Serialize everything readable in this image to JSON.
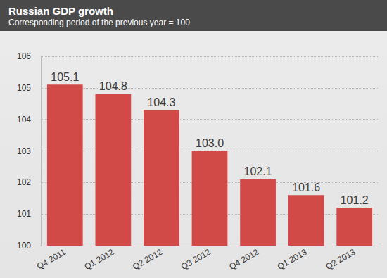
{
  "chart_data": {
    "type": "bar",
    "title": "Russian GDP growth",
    "subtitle": "Corresponding period of the previous year = 100",
    "categories": [
      "Q4 2011",
      "Q1 2012",
      "Q2 2012",
      "Q3 2012",
      "Q4 2012",
      "Q1 2013",
      "Q2 2013"
    ],
    "values": [
      105.1,
      104.8,
      104.3,
      103.0,
      102.1,
      101.6,
      101.2
    ],
    "value_labels": [
      "105.1",
      "104.8",
      "104.3",
      "103.0",
      "102.1",
      "101.6",
      "101.2"
    ],
    "color": "#d24a48",
    "ylim": [
      100,
      106
    ],
    "yticks": [
      100,
      101,
      102,
      103,
      104,
      105,
      106
    ],
    "grid": true,
    "data_labels": true
  }
}
